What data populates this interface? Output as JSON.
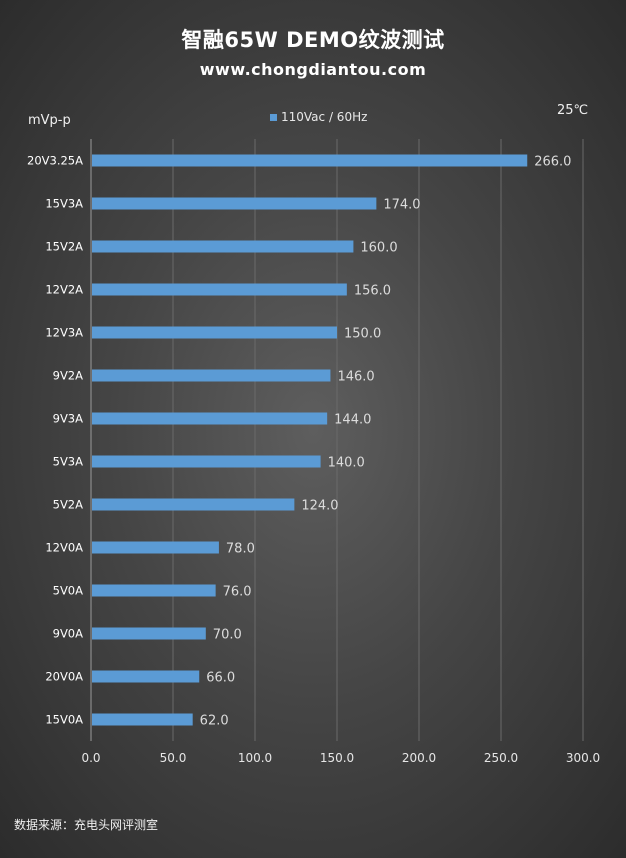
{
  "header": {
    "title": "智融65W  DEMO纹波测试",
    "subtitle": "www.chongdiantou.com"
  },
  "unit_label": "mVp-p",
  "temperature": "25℃",
  "source": "数据来源：充电头网评测室",
  "colors": {
    "bar": "#5b9bd5",
    "grid": "#6a6a6a"
  },
  "chart_data": {
    "type": "bar",
    "orientation": "horizontal",
    "title": "智融65W  DEMO纹波测试",
    "subtitle": "www.chongdiantou.com",
    "xlabel": "",
    "ylabel": "mVp-p",
    "xlim": [
      0,
      300
    ],
    "x_ticks": [
      0,
      50,
      100,
      150,
      200,
      250,
      300
    ],
    "x_tick_labels": [
      "0.0",
      "50.0",
      "100.0",
      "150.0",
      "200.0",
      "250.0",
      "300.0"
    ],
    "grid": true,
    "legend_position": "top-center",
    "categories": [
      "20V3.25A",
      "15V3A",
      "15V2A",
      "12V2A",
      "12V3A",
      "9V2A",
      "9V3A",
      "5V3A",
      "5V2A",
      "12V0A",
      "5V0A",
      "9V0A",
      "20V0A",
      "15V0A"
    ],
    "series": [
      {
        "name": "110Vac / 60Hz",
        "values": [
          266.0,
          174.0,
          160.0,
          156.0,
          150.0,
          146.0,
          144.0,
          140.0,
          124.0,
          78.0,
          76.0,
          70.0,
          66.0,
          62.0
        ],
        "labels": [
          "266.0",
          "174.0",
          "160.0",
          "156.0",
          "150.0",
          "146.0",
          "144.0",
          "140.0",
          "124.0",
          "78.0",
          "76.0",
          "70.0",
          "66.0",
          "62.0"
        ]
      }
    ]
  }
}
